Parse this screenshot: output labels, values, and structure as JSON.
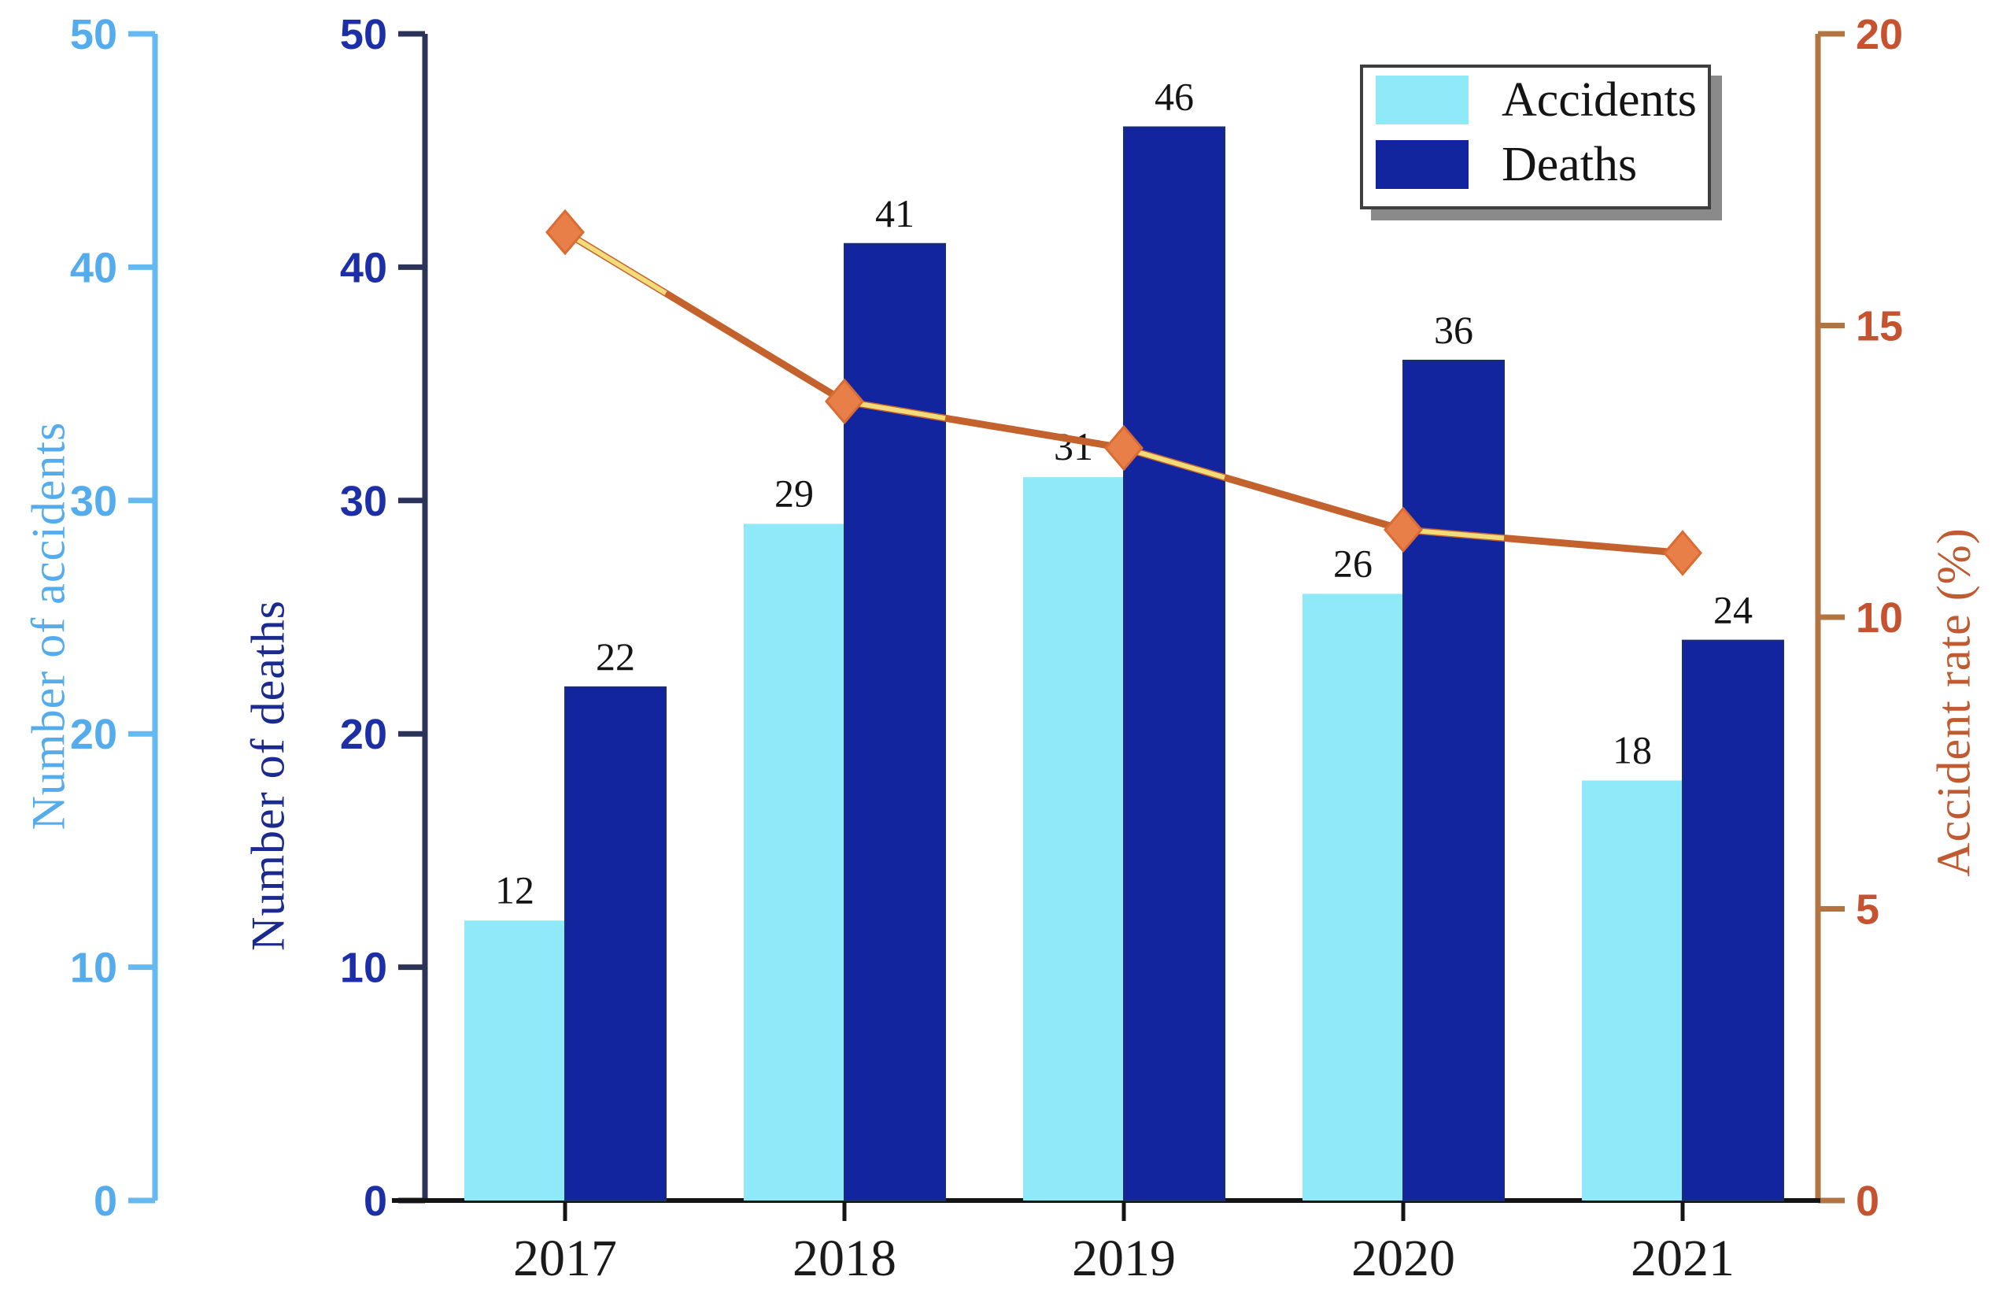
{
  "chart_data": {
    "type": "composite",
    "title": "",
    "categories": [
      "2017",
      "2018",
      "2019",
      "2020",
      "2021"
    ],
    "series": [
      {
        "name": "Accidents",
        "type": "bar",
        "axis": "left",
        "color": "#8FE9F8",
        "values": [
          12,
          29,
          31,
          26,
          18
        ]
      },
      {
        "name": "Deaths",
        "type": "bar",
        "axis": "left",
        "color": "#12249E",
        "values": [
          22,
          41,
          46,
          36,
          24
        ]
      },
      {
        "name": "Accident rate (%)",
        "type": "line",
        "axis": "right",
        "color": "#C4622E",
        "marker": "diamond",
        "marker_color": "#E87F48",
        "values": [
          16.6,
          13.7,
          12.9,
          11.5,
          11.1
        ]
      }
    ],
    "axes": {
      "left_accidents": {
        "label": "Number of accidents",
        "range": [
          0,
          50
        ],
        "tick_step": 10,
        "ticks": [
          0,
          10,
          20,
          30,
          40,
          50
        ],
        "color": "#55ACEC"
      },
      "left_deaths": {
        "label": "Number of deaths",
        "range": [
          0,
          50
        ],
        "tick_step": 10,
        "ticks": [
          0,
          10,
          20,
          30,
          40,
          50
        ],
        "color": "#1C2FA6"
      },
      "right_rate": {
        "label": "Accident rate (%)",
        "range": [
          0,
          20
        ],
        "tick_step": 5,
        "ticks": [
          0,
          5,
          10,
          15,
          20
        ],
        "color": "#C6532F"
      }
    },
    "legend": {
      "position": "top-right",
      "entries": [
        "Accidents",
        "Deaths"
      ]
    },
    "grid": false,
    "bar_value_labels_shown": true
  }
}
